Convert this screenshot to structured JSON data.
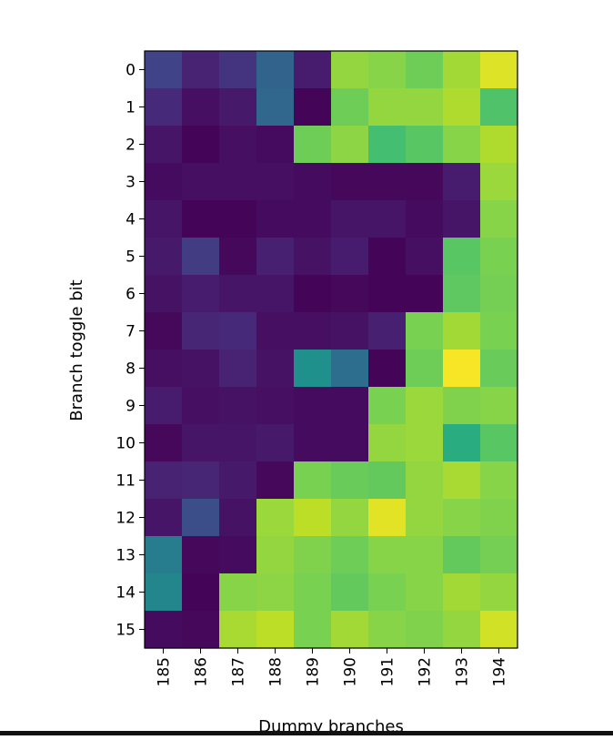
{
  "chart_data": {
    "type": "heatmap",
    "colormap": "viridis",
    "title": "",
    "xlabel": "Dummy branches",
    "ylabel": "Branch toggle bit",
    "x_categories": [
      "185",
      "186",
      "187",
      "188",
      "189",
      "190",
      "191",
      "192",
      "193",
      "194"
    ],
    "y_categories": [
      "0",
      "1",
      "2",
      "3",
      "4",
      "5",
      "6",
      "7",
      "8",
      "9",
      "10",
      "11",
      "12",
      "13",
      "14",
      "15"
    ],
    "value_range": [
      0,
      1
    ],
    "values": [
      [
        0.2,
        0.1,
        0.15,
        0.32,
        0.08,
        0.84,
        0.82,
        0.78,
        0.86,
        0.95
      ],
      [
        0.12,
        0.04,
        0.07,
        0.33,
        0.01,
        0.78,
        0.84,
        0.84,
        0.88,
        0.72
      ],
      [
        0.06,
        0.01,
        0.04,
        0.03,
        0.78,
        0.83,
        0.7,
        0.74,
        0.82,
        0.88
      ],
      [
        0.03,
        0.04,
        0.04,
        0.04,
        0.03,
        0.02,
        0.02,
        0.02,
        0.08,
        0.85
      ],
      [
        0.06,
        0.01,
        0.01,
        0.03,
        0.03,
        0.06,
        0.06,
        0.03,
        0.06,
        0.82
      ],
      [
        0.07,
        0.18,
        0.02,
        0.09,
        0.05,
        0.08,
        0.01,
        0.04,
        0.74,
        0.8
      ],
      [
        0.05,
        0.08,
        0.06,
        0.06,
        0.01,
        0.02,
        0.01,
        0.01,
        0.75,
        0.79
      ],
      [
        0.02,
        0.11,
        0.12,
        0.04,
        0.04,
        0.05,
        0.09,
        0.8,
        0.86,
        0.8
      ],
      [
        0.04,
        0.05,
        0.1,
        0.05,
        0.5,
        0.36,
        0.01,
        0.78,
        0.99,
        0.77
      ],
      [
        0.08,
        0.04,
        0.05,
        0.04,
        0.03,
        0.03,
        0.8,
        0.85,
        0.81,
        0.82
      ],
      [
        0.02,
        0.06,
        0.06,
        0.07,
        0.03,
        0.03,
        0.84,
        0.85,
        0.62,
        0.74
      ],
      [
        0.1,
        0.11,
        0.07,
        0.02,
        0.8,
        0.77,
        0.76,
        0.84,
        0.87,
        0.82
      ],
      [
        0.06,
        0.24,
        0.05,
        0.85,
        0.9,
        0.84,
        0.96,
        0.84,
        0.82,
        0.81
      ],
      [
        0.42,
        0.02,
        0.03,
        0.84,
        0.81,
        0.78,
        0.82,
        0.82,
        0.76,
        0.79
      ],
      [
        0.46,
        0.01,
        0.82,
        0.83,
        0.8,
        0.76,
        0.8,
        0.82,
        0.86,
        0.84
      ],
      [
        0.03,
        0.02,
        0.87,
        0.9,
        0.8,
        0.86,
        0.82,
        0.81,
        0.84,
        0.93
      ]
    ]
  }
}
